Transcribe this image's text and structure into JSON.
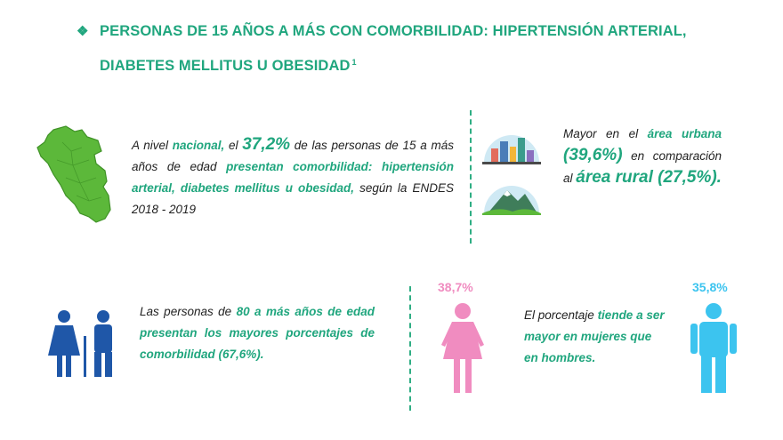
{
  "header": {
    "bullet": "❖",
    "title_line1": "PERSONAS DE 15 AÑOS A MÁS CON COMORBILIDAD: HIPERTENSIÓN ARTERIAL,",
    "title_line2": "DIABETES MELLITUS U OBESIDAD",
    "footnote": "1"
  },
  "national": {
    "t1": "A nivel ",
    "h1": "nacional,",
    "t2": " el ",
    "h2": "37,2%",
    "t3": " de las personas de 15 a más años de edad ",
    "h3": "presentan comorbilidad: hipertensión arterial, diabetes mellitus u obesidad,",
    "t4": " según la ENDES 2018 - 2019"
  },
  "area": {
    "t1": "Mayor en el ",
    "h1": "área urbana",
    "h2": "(39,6%)",
    "t2": " en comparación al ",
    "h3": "área rural (27,5%)."
  },
  "age": {
    "t1": "Las personas de ",
    "h1": "80 a más años de edad presentan los mayores porcentajes de comorbilidad (67,6%)."
  },
  "sex": {
    "women_pct": "38,7%",
    "men_pct": "35,8%",
    "t1": "El porcentaje ",
    "h1": "tiende a ser mayor en mujeres que en hombres."
  },
  "colors": {
    "accent_green": "#20a67e",
    "map_green": "#5cb83a",
    "women_pink": "#f08cc0",
    "men_blue": "#3cc4ef",
    "elderly_blue": "#1f57a8"
  }
}
